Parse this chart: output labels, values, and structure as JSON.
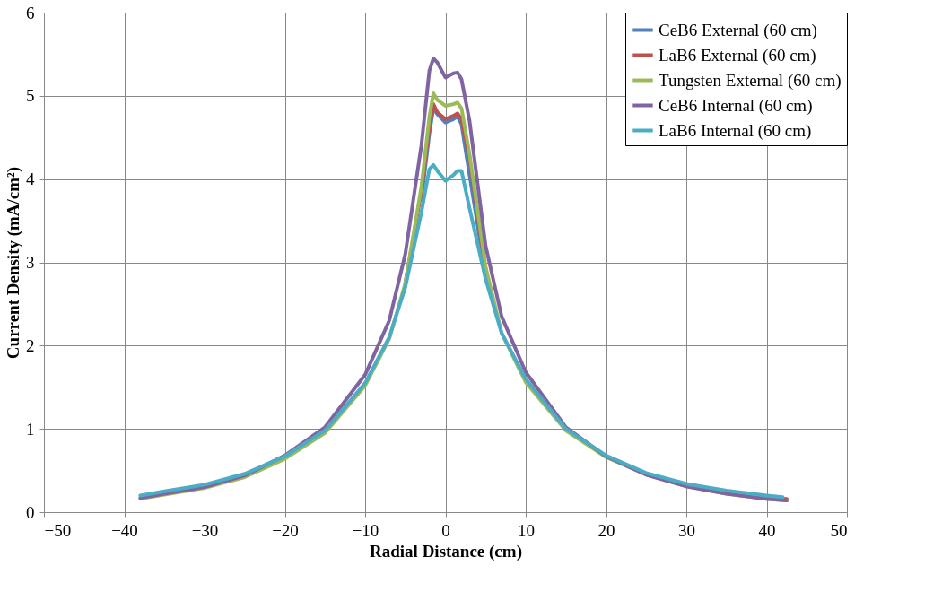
{
  "chart_data": {
    "type": "line",
    "xlabel": "Radial Distance (cm)",
    "ylabel": "Current Density (mA/cm²)",
    "x": [
      -38,
      -35,
      -30,
      -25,
      -20,
      -15,
      -10,
      -7,
      -5,
      -3,
      -2,
      -1.5,
      -1,
      0,
      1,
      1.5,
      2,
      3,
      5,
      7,
      10,
      15,
      20,
      25,
      30,
      35,
      40,
      42.5
    ],
    "series": [
      {
        "name": "CeB6 External (60 cm)",
        "color": "#4f81bd",
        "values": [
          null,
          null,
          null,
          null,
          null,
          null,
          null,
          null,
          null,
          3.75,
          4.55,
          4.85,
          4.78,
          4.68,
          4.72,
          4.75,
          4.66,
          4.05,
          2.85,
          null,
          null,
          null,
          null,
          null,
          null,
          null,
          null,
          null
        ]
      },
      {
        "name": "LaB6 External (60 cm)",
        "color": "#c0504d",
        "values": [
          null,
          null,
          null,
          null,
          null,
          null,
          null,
          null,
          2.75,
          3.85,
          4.62,
          4.9,
          4.8,
          4.72,
          4.76,
          4.79,
          4.72,
          4.25,
          2.9,
          null,
          null,
          null,
          null,
          null,
          null,
          null,
          0.17,
          0.16
        ]
      },
      {
        "name": "Tungsten External (60 cm)",
        "color": "#9bbb59",
        "values": [
          0.16,
          0.21,
          0.29,
          0.42,
          0.64,
          0.95,
          1.52,
          2.08,
          2.75,
          3.9,
          4.75,
          5.03,
          4.95,
          4.88,
          4.9,
          4.92,
          4.85,
          4.3,
          2.95,
          2.15,
          1.56,
          0.98,
          0.66,
          0.45,
          0.31,
          0.22,
          0.16,
          0.14
        ]
      },
      {
        "name": "CeB6 Internal (60 cm)",
        "color": "#8064a2",
        "values": [
          0.17,
          0.22,
          0.3,
          0.44,
          0.68,
          1.02,
          1.65,
          2.3,
          3.1,
          4.4,
          5.3,
          5.45,
          5.4,
          5.22,
          5.27,
          5.28,
          5.2,
          4.7,
          3.2,
          2.35,
          1.68,
          1.02,
          0.67,
          0.45,
          0.31,
          0.22,
          0.16,
          0.14
        ]
      },
      {
        "name": "LaB6 Internal (60 cm)",
        "color": "#4bacc6",
        "x": [
          -38,
          -35,
          -30,
          -25,
          -20,
          -15,
          -10,
          -7,
          -5,
          -3,
          -2,
          -1.5,
          -1,
          0,
          1,
          1.5,
          2,
          3,
          5,
          7,
          10,
          15,
          20,
          25,
          30,
          35,
          40,
          42
        ],
        "values": [
          0.2,
          0.25,
          0.33,
          0.46,
          0.67,
          0.98,
          1.55,
          2.1,
          2.7,
          3.6,
          4.12,
          4.17,
          4.1,
          3.98,
          4.05,
          4.1,
          4.1,
          3.65,
          2.8,
          2.15,
          1.6,
          1.0,
          0.68,
          0.47,
          0.34,
          0.26,
          0.2,
          0.18
        ]
      }
    ],
    "xlim": [
      -50,
      50
    ],
    "xticks": [
      -50,
      -40,
      -30,
      -20,
      -10,
      0,
      10,
      20,
      30,
      40,
      50
    ],
    "ylim": [
      0,
      6
    ],
    "yticks": [
      0,
      1,
      2,
      3,
      4,
      5,
      6
    ],
    "grid": true,
    "legend": "top right",
    "marker": "none",
    "line_style": "solid"
  }
}
